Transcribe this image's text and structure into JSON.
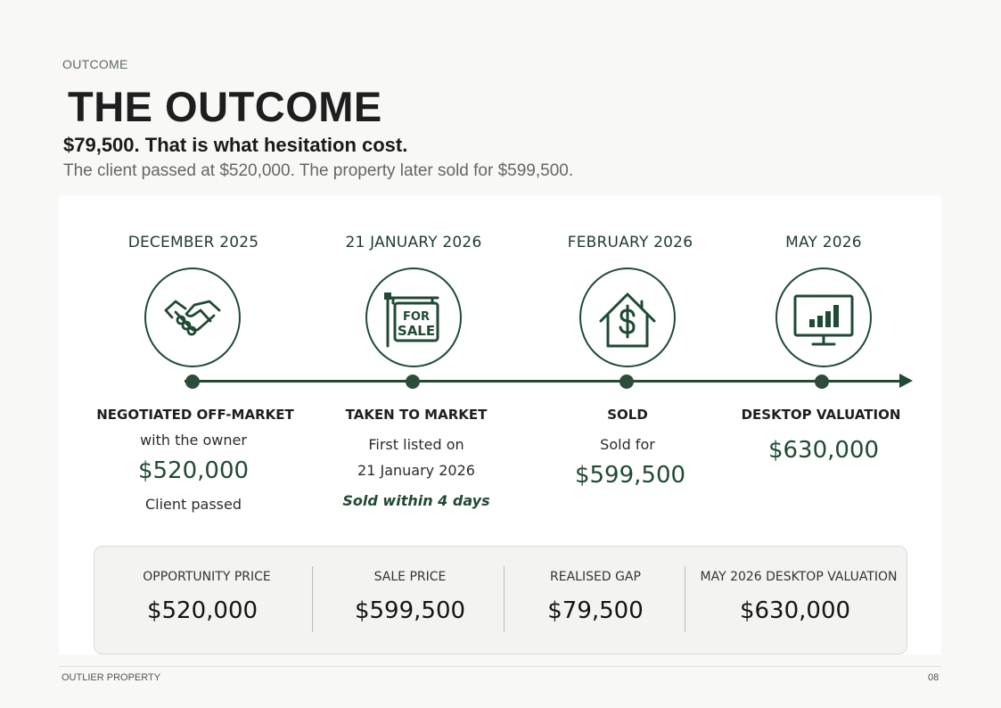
{
  "header": {
    "eyebrow": "OUTCOME",
    "title": "THE OUTCOME",
    "subtitle": "$79,500. That is what hesitation cost.",
    "lead": "The client passed at $520,000. The property later sold for $599,500."
  },
  "timeline": {
    "events": [
      {
        "date": "DECEMBER 2025",
        "icon": "handshake-icon",
        "heading": "NEGOTIATED OFF-MARKET",
        "sub": "with the owner",
        "price": "$520,000",
        "note": "Client passed"
      },
      {
        "date": "21 JANUARY 2026",
        "icon": "for-sale-sign-icon",
        "sign_line1": "FOR",
        "sign_line2": "SALE",
        "heading": "TAKEN TO MARKET",
        "sub1": "First listed on",
        "sub2": "21 January 2026",
        "note": "Sold within 4 days"
      },
      {
        "date": "FEBRUARY 2026",
        "icon": "house-dollar-icon",
        "heading": "SOLD",
        "sub": "Sold for",
        "price": "$599,500"
      },
      {
        "date": "MAY 2026",
        "icon": "monitor-chart-icon",
        "heading": "DESKTOP VALUATION",
        "price": "$630,000"
      }
    ]
  },
  "summary": {
    "items": [
      {
        "label": "OPPORTUNITY PRICE",
        "value": "$520,000"
      },
      {
        "label": "SALE PRICE",
        "value": "$599,500"
      },
      {
        "label": "REALISED GAP",
        "value": "$79,500"
      },
      {
        "label": "MAY 2026 DESKTOP VALUATION",
        "value": "$630,000"
      }
    ]
  },
  "footer": {
    "left": "OUTLIER PROPERTY",
    "page": "08"
  },
  "colors": {
    "accent": "#1f4a33",
    "background": "#f8f8f6",
    "panel": "#ffffff"
  }
}
